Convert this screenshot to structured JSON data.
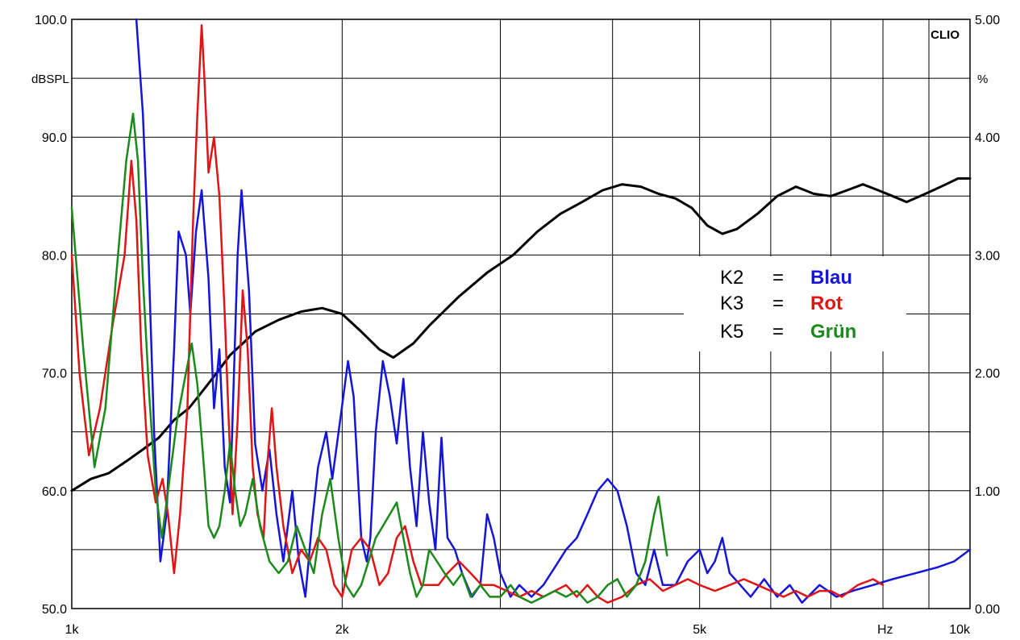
{
  "chart_data": {
    "type": "line",
    "x_scale": "log",
    "xlim": [
      1000,
      10000
    ],
    "ylim_left": [
      50,
      100
    ],
    "ylim_right": [
      0,
      5
    ],
    "grid": true,
    "brand": "CLIO",
    "left_unit": "dBSPL",
    "right_unit": "%",
    "x_unit": "Hz",
    "left_ticks": [
      "100.0",
      "90.0",
      "80.0",
      "70.0",
      "60.0",
      "50.0"
    ],
    "right_ticks": [
      "5.00",
      "4.00",
      "3.00",
      "2.00",
      "1.00",
      "0.00"
    ],
    "x_ticks": [
      "1k",
      "2k",
      "5k",
      "10k"
    ],
    "legend": [
      {
        "key": "K2",
        "eq": "=",
        "label": "Blau",
        "color": "#1515d9"
      },
      {
        "key": "K3",
        "eq": "=",
        "label": "Rot",
        "color": "#e01414"
      },
      {
        "key": "K5",
        "eq": "=",
        "label": "Grün",
        "color": "#1a8a1a"
      }
    ],
    "series": [
      {
        "axis": "left",
        "color": "#000000",
        "points": [
          [
            1000,
            60.0
          ],
          [
            1050,
            61.0
          ],
          [
            1100,
            61.5
          ],
          [
            1150,
            62.5
          ],
          [
            1200,
            63.5
          ],
          [
            1250,
            64.5
          ],
          [
            1300,
            66
          ],
          [
            1350,
            67
          ],
          [
            1400,
            68.5
          ],
          [
            1450,
            70
          ],
          [
            1500,
            71.5
          ],
          [
            1550,
            72.5
          ],
          [
            1600,
            73.5
          ],
          [
            1700,
            74.5
          ],
          [
            1800,
            75.2
          ],
          [
            1900,
            75.5
          ],
          [
            2000,
            75.0
          ],
          [
            2100,
            73.5
          ],
          [
            2200,
            72
          ],
          [
            2280,
            71.3
          ],
          [
            2400,
            72.5
          ],
          [
            2500,
            74
          ],
          [
            2700,
            76.5
          ],
          [
            2900,
            78.5
          ],
          [
            3100,
            80
          ],
          [
            3300,
            82
          ],
          [
            3500,
            83.5
          ],
          [
            3700,
            84.5
          ],
          [
            3900,
            85.5
          ],
          [
            4100,
            86
          ],
          [
            4300,
            85.8
          ],
          [
            4500,
            85.2
          ],
          [
            4700,
            84.8
          ],
          [
            4900,
            84
          ],
          [
            5100,
            82.5
          ],
          [
            5300,
            81.8
          ],
          [
            5500,
            82.2
          ],
          [
            5800,
            83.5
          ],
          [
            6100,
            85
          ],
          [
            6400,
            85.8
          ],
          [
            6700,
            85.2
          ],
          [
            7000,
            85.0
          ],
          [
            7300,
            85.5
          ],
          [
            7600,
            86
          ],
          [
            7900,
            85.5
          ],
          [
            8200,
            85
          ],
          [
            8500,
            84.5
          ],
          [
            8800,
            85
          ],
          [
            9100,
            85.5
          ],
          [
            9400,
            86
          ],
          [
            9700,
            86.5
          ],
          [
            10000,
            86.5
          ]
        ]
      },
      {
        "axis": "left",
        "name": "Blau",
        "color": "#1515d9",
        "points": [
          [
            1180,
            100
          ],
          [
            1200,
            92
          ],
          [
            1215,
            82
          ],
          [
            1235,
            65
          ],
          [
            1255,
            54
          ],
          [
            1275,
            58
          ],
          [
            1300,
            72
          ],
          [
            1315,
            82
          ],
          [
            1340,
            80
          ],
          [
            1355,
            75
          ],
          [
            1375,
            82
          ],
          [
            1395,
            85.5
          ],
          [
            1420,
            78
          ],
          [
            1440,
            67
          ],
          [
            1460,
            72
          ],
          [
            1480,
            62
          ],
          [
            1500,
            59
          ],
          [
            1530,
            80
          ],
          [
            1545,
            85.5
          ],
          [
            1575,
            77
          ],
          [
            1600,
            64
          ],
          [
            1630,
            60
          ],
          [
            1660,
            63.5
          ],
          [
            1690,
            58
          ],
          [
            1720,
            54
          ],
          [
            1760,
            60
          ],
          [
            1790,
            54
          ],
          [
            1820,
            51
          ],
          [
            1850,
            57
          ],
          [
            1880,
            62
          ],
          [
            1920,
            65
          ],
          [
            1950,
            61
          ],
          [
            1990,
            66
          ],
          [
            2030,
            71
          ],
          [
            2060,
            68
          ],
          [
            2100,
            56
          ],
          [
            2130,
            54
          ],
          [
            2150,
            56
          ],
          [
            2180,
            65
          ],
          [
            2220,
            71
          ],
          [
            2260,
            68
          ],
          [
            2300,
            64
          ],
          [
            2340,
            69.5
          ],
          [
            2380,
            62
          ],
          [
            2420,
            57
          ],
          [
            2460,
            65
          ],
          [
            2500,
            59
          ],
          [
            2540,
            55
          ],
          [
            2580,
            64.5
          ],
          [
            2620,
            56
          ],
          [
            2670,
            55
          ],
          [
            2720,
            53
          ],
          [
            2790,
            51
          ],
          [
            2850,
            52
          ],
          [
            2900,
            58
          ],
          [
            2950,
            56
          ],
          [
            3000,
            53
          ],
          [
            3080,
            51
          ],
          [
            3150,
            52
          ],
          [
            3250,
            51
          ],
          [
            3350,
            52
          ],
          [
            3450,
            53.5
          ],
          [
            3550,
            55
          ],
          [
            3650,
            56
          ],
          [
            3750,
            58
          ],
          [
            3850,
            60
          ],
          [
            3950,
            61
          ],
          [
            4050,
            60
          ],
          [
            4150,
            57
          ],
          [
            4250,
            53
          ],
          [
            4350,
            52
          ],
          [
            4450,
            55
          ],
          [
            4550,
            52
          ],
          [
            4700,
            52
          ],
          [
            4850,
            54
          ],
          [
            5000,
            55
          ],
          [
            5100,
            53
          ],
          [
            5200,
            54
          ],
          [
            5300,
            56
          ],
          [
            5400,
            53
          ],
          [
            5550,
            52
          ],
          [
            5700,
            51
          ],
          [
            5900,
            52.5
          ],
          [
            6100,
            51
          ],
          [
            6300,
            52
          ],
          [
            6500,
            50.5
          ],
          [
            6800,
            52
          ],
          [
            7100,
            51
          ],
          [
            7400,
            51.5
          ],
          [
            7800,
            52
          ],
          [
            8200,
            52.5
          ],
          [
            8700,
            53
          ],
          [
            9200,
            53.5
          ],
          [
            9600,
            54
          ],
          [
            10000,
            55
          ]
        ]
      },
      {
        "axis": "left",
        "name": "Rot",
        "color": "#e01414",
        "points": [
          [
            1000,
            80
          ],
          [
            1020,
            70
          ],
          [
            1045,
            63
          ],
          [
            1075,
            67
          ],
          [
            1110,
            74
          ],
          [
            1145,
            80
          ],
          [
            1165,
            88
          ],
          [
            1180,
            83
          ],
          [
            1195,
            72
          ],
          [
            1215,
            63
          ],
          [
            1240,
            59
          ],
          [
            1262,
            61
          ],
          [
            1280,
            58
          ],
          [
            1300,
            53
          ],
          [
            1320,
            58
          ],
          [
            1345,
            67
          ],
          [
            1365,
            83
          ],
          [
            1380,
            92
          ],
          [
            1395,
            99.5
          ],
          [
            1405,
            95
          ],
          [
            1420,
            87
          ],
          [
            1440,
            90
          ],
          [
            1460,
            85
          ],
          [
            1480,
            75
          ],
          [
            1495,
            66
          ],
          [
            1510,
            58
          ],
          [
            1530,
            66
          ],
          [
            1550,
            77
          ],
          [
            1570,
            72
          ],
          [
            1590,
            62
          ],
          [
            1610,
            58
          ],
          [
            1635,
            56
          ],
          [
            1650,
            62
          ],
          [
            1670,
            67
          ],
          [
            1690,
            62
          ],
          [
            1720,
            57
          ],
          [
            1760,
            53
          ],
          [
            1800,
            55
          ],
          [
            1840,
            54
          ],
          [
            1880,
            56
          ],
          [
            1920,
            55
          ],
          [
            1960,
            52
          ],
          [
            2000,
            51
          ],
          [
            2050,
            55
          ],
          [
            2100,
            56
          ],
          [
            2150,
            55
          ],
          [
            2200,
            52
          ],
          [
            2250,
            53
          ],
          [
            2300,
            56
          ],
          [
            2350,
            57
          ],
          [
            2400,
            54
          ],
          [
            2450,
            52
          ],
          [
            2500,
            52
          ],
          [
            2560,
            52
          ],
          [
            2620,
            53
          ],
          [
            2700,
            54
          ],
          [
            2780,
            53
          ],
          [
            2860,
            52
          ],
          [
            2950,
            52
          ],
          [
            3050,
            51.5
          ],
          [
            3150,
            51
          ],
          [
            3250,
            51.5
          ],
          [
            3350,
            51
          ],
          [
            3450,
            51.5
          ],
          [
            3550,
            52
          ],
          [
            3650,
            51
          ],
          [
            3750,
            52
          ],
          [
            3850,
            51
          ],
          [
            3950,
            50.5
          ],
          [
            4100,
            51
          ],
          [
            4250,
            52
          ],
          [
            4400,
            52.5
          ],
          [
            4550,
            51.5
          ],
          [
            4700,
            52
          ],
          [
            4850,
            52.5
          ],
          [
            5000,
            52
          ],
          [
            5200,
            51.5
          ],
          [
            5400,
            52
          ],
          [
            5600,
            52.5
          ],
          [
            5800,
            52
          ],
          [
            6000,
            51.5
          ],
          [
            6200,
            51
          ],
          [
            6400,
            51.5
          ],
          [
            6600,
            51
          ],
          [
            6800,
            51.5
          ],
          [
            7000,
            51.5
          ],
          [
            7200,
            51
          ],
          [
            7500,
            52
          ],
          [
            7800,
            52.5
          ],
          [
            8000,
            52
          ]
        ]
      },
      {
        "axis": "left",
        "name": "Grün",
        "color": "#1a8a1a",
        "points": [
          [
            1000,
            84
          ],
          [
            1030,
            72
          ],
          [
            1060,
            62
          ],
          [
            1090,
            67
          ],
          [
            1120,
            78
          ],
          [
            1150,
            88
          ],
          [
            1170,
            92
          ],
          [
            1185,
            88
          ],
          [
            1200,
            78
          ],
          [
            1220,
            68
          ],
          [
            1240,
            60
          ],
          [
            1260,
            56
          ],
          [
            1280,
            60
          ],
          [
            1310,
            66
          ],
          [
            1340,
            70
          ],
          [
            1360,
            72.5
          ],
          [
            1380,
            69
          ],
          [
            1400,
            63
          ],
          [
            1420,
            57
          ],
          [
            1440,
            56
          ],
          [
            1460,
            57
          ],
          [
            1480,
            60
          ],
          [
            1500,
            64
          ],
          [
            1520,
            60
          ],
          [
            1540,
            57
          ],
          [
            1560,
            58
          ],
          [
            1590,
            61
          ],
          [
            1620,
            57
          ],
          [
            1660,
            54
          ],
          [
            1700,
            53
          ],
          [
            1740,
            54
          ],
          [
            1780,
            57
          ],
          [
            1820,
            55
          ],
          [
            1860,
            53
          ],
          [
            1900,
            58
          ],
          [
            1940,
            61
          ],
          [
            1980,
            56
          ],
          [
            2020,
            52
          ],
          [
            2060,
            51
          ],
          [
            2100,
            52
          ],
          [
            2140,
            54
          ],
          [
            2180,
            56
          ],
          [
            2220,
            57
          ],
          [
            2260,
            58
          ],
          [
            2300,
            59
          ],
          [
            2340,
            56
          ],
          [
            2380,
            53
          ],
          [
            2420,
            51
          ],
          [
            2460,
            52
          ],
          [
            2500,
            55
          ],
          [
            2550,
            54
          ],
          [
            2600,
            53
          ],
          [
            2660,
            52
          ],
          [
            2720,
            53
          ],
          [
            2780,
            51
          ],
          [
            2850,
            52
          ],
          [
            2920,
            51
          ],
          [
            3000,
            51
          ],
          [
            3080,
            52
          ],
          [
            3150,
            51
          ],
          [
            3250,
            50.5
          ],
          [
            3350,
            51
          ],
          [
            3450,
            51.5
          ],
          [
            3550,
            51
          ],
          [
            3650,
            51.5
          ],
          [
            3750,
            50.5
          ],
          [
            3850,
            51
          ],
          [
            3950,
            52
          ],
          [
            4050,
            52.5
          ],
          [
            4150,
            51
          ],
          [
            4250,
            52
          ],
          [
            4350,
            54
          ],
          [
            4450,
            58
          ],
          [
            4500,
            59.5
          ],
          [
            4550,
            57
          ],
          [
            4600,
            54.5
          ]
        ]
      }
    ]
  }
}
